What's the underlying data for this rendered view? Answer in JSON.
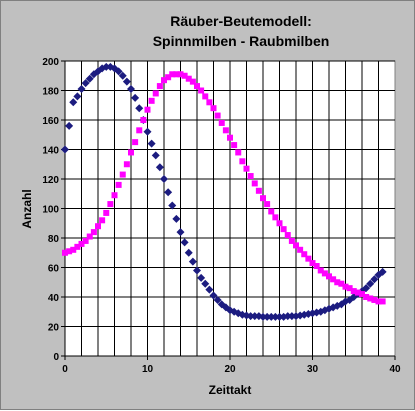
{
  "chart_data": {
    "type": "scatter",
    "title": "Räuber-Beutemodell:",
    "subtitle": "Spinnmilben - Raubmilben",
    "xlabel": "Zeittakt",
    "ylabel": "Anzahl",
    "xlim": [
      0,
      40
    ],
    "ylim": [
      0,
      200
    ],
    "x_ticks": [
      0,
      10,
      20,
      30,
      40
    ],
    "y_ticks": [
      0,
      20,
      40,
      60,
      80,
      100,
      120,
      140,
      160,
      180,
      200
    ],
    "grid": true,
    "legend": "none",
    "series": [
      {
        "color": "#1c1c80",
        "marker": "diamond",
        "x": [
          0,
          0.5,
          1,
          1.5,
          2,
          2.5,
          3,
          3.5,
          4,
          4.5,
          5,
          5.5,
          6,
          6.5,
          7,
          7.5,
          8,
          8.5,
          9,
          9.5,
          10,
          10.5,
          11,
          11.5,
          12,
          12.5,
          13,
          13.5,
          14,
          14.5,
          15,
          15.5,
          16,
          16.5,
          17,
          17.5,
          18,
          18.5,
          19,
          19.5,
          20,
          20.5,
          21,
          21.5,
          22,
          22.5,
          23,
          23.5,
          24,
          24.5,
          25,
          25.5,
          26,
          26.5,
          27,
          27.5,
          28,
          28.5,
          29,
          29.5,
          30,
          30.5,
          31,
          31.5,
          32,
          32.5,
          33,
          33.5,
          34,
          34.5,
          35,
          35.5,
          36,
          36.5,
          37,
          37.5,
          38,
          38.5
        ],
        "y": [
          140,
          156,
          172,
          176,
          181,
          185,
          188,
          191,
          193,
          195,
          196,
          196,
          195,
          193,
          190,
          186,
          181,
          175,
          168,
          160,
          152,
          144,
          136,
          128,
          120,
          111,
          102,
          93,
          84,
          77,
          70,
          64,
          58,
          53,
          49,
          45,
          41,
          38,
          35,
          33,
          31,
          30,
          29,
          28,
          27.5,
          27,
          27,
          27,
          26.5,
          26.5,
          26.5,
          26.5,
          26.5,
          26.5,
          27,
          27,
          27,
          27.5,
          28,
          28.5,
          29,
          29.5,
          30,
          31,
          32,
          33,
          34,
          35,
          37,
          38,
          40,
          42,
          44,
          46,
          49,
          52,
          55,
          57
        ]
      },
      {
        "color": "#ff00ff",
        "marker": "square",
        "x": [
          0,
          0.5,
          1,
          1.5,
          2,
          2.5,
          3,
          3.5,
          4,
          4.5,
          5,
          5.5,
          6,
          6.5,
          7,
          7.5,
          8,
          8.5,
          9,
          9.5,
          10,
          10.5,
          11,
          11.5,
          12,
          12.5,
          13,
          13.5,
          14,
          14.5,
          15,
          15.5,
          16,
          16.5,
          17,
          17.5,
          18,
          18.5,
          19,
          19.5,
          20,
          20.5,
          21,
          21.5,
          22,
          22.5,
          23,
          23.5,
          24,
          24.5,
          25,
          25.5,
          26,
          26.5,
          27,
          27.5,
          28,
          28.5,
          29,
          29.5,
          30,
          30.5,
          31,
          31.5,
          32,
          32.5,
          33,
          33.5,
          34,
          34.5,
          35,
          35.5,
          36,
          36.5,
          37,
          37.5,
          38,
          38.5
        ],
        "y": [
          70,
          71,
          72,
          74,
          76,
          78,
          81,
          84,
          88,
          92,
          97,
          103,
          109,
          116,
          123,
          130,
          138,
          145,
          153,
          160,
          167,
          173,
          178,
          183,
          187,
          189,
          191,
          191,
          191,
          190,
          188,
          186,
          183,
          180,
          176,
          172,
          168,
          163,
          158,
          153,
          148,
          143,
          138,
          132,
          127,
          122,
          117,
          112,
          107,
          103,
          98,
          94,
          90,
          86,
          82,
          78,
          75,
          72,
          69,
          66,
          63,
          61,
          58,
          56,
          54,
          52,
          50,
          49,
          47,
          46,
          44,
          43,
          42,
          40,
          39,
          38,
          37,
          37
        ]
      }
    ]
  }
}
